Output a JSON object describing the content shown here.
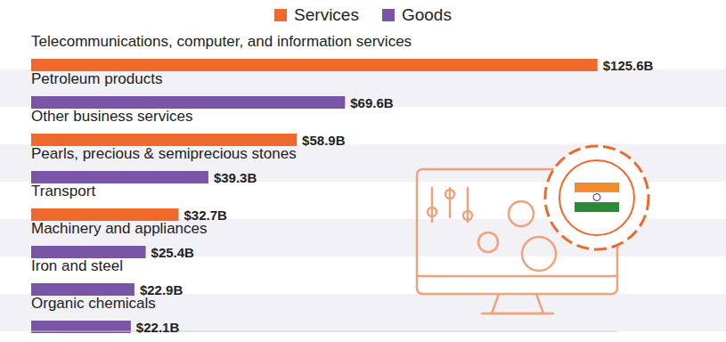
{
  "chart_data": {
    "type": "bar",
    "orientation": "horizontal",
    "stacked": true,
    "data_labels": true,
    "tick_labels": false,
    "grid": false,
    "legend": "top",
    "categories": [
      "Telecommunications, computer, and information services",
      "Petroleum products",
      "Other business services",
      "Pearls, precious & semiprecious stones",
      "Transport",
      "Machinery and appliances",
      "Iron and steel",
      "Organic chemicals"
    ],
    "series": [
      {
        "name": "Services",
        "color": "#ee6a2c",
        "values": [
          125.6,
          null,
          58.9,
          null,
          32.7,
          null,
          null,
          null
        ],
        "value_labels": [
          "$125.6B",
          null,
          "$58.9B",
          null,
          "$32.7B",
          null,
          null,
          null
        ]
      },
      {
        "name": "Goods",
        "color": "#7a55a6",
        "values": [
          null,
          69.6,
          null,
          39.3,
          null,
          25.4,
          22.9,
          22.1
        ],
        "value_labels": [
          null,
          "$69.6B",
          null,
          "$39.3B",
          null,
          "$25.4B",
          "$22.9B",
          "$22.1B"
        ]
      }
    ],
    "xlim": [
      0,
      130
    ]
  }
}
